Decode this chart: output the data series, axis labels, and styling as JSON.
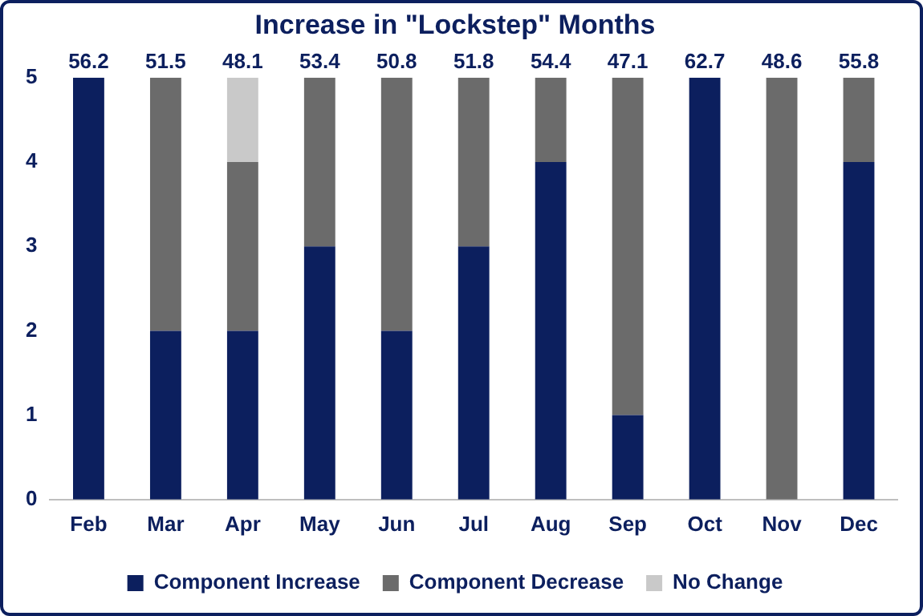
{
  "chart_data": {
    "type": "bar",
    "title": "Increase in \"Lockstep\" Months",
    "categories": [
      "Feb",
      "Mar",
      "Apr",
      "May",
      "Jun",
      "Jul",
      "Aug",
      "Sep",
      "Oct",
      "Nov",
      "Dec"
    ],
    "stacked": true,
    "series": [
      {
        "name": "Component Increase",
        "color": "#0c1f5e",
        "values": [
          5,
          2,
          2,
          3,
          2,
          3,
          4,
          1,
          5,
          0,
          4
        ]
      },
      {
        "name": "Component Decrease",
        "color": "#6b6b6b",
        "values": [
          0,
          3,
          2,
          2,
          3,
          2,
          1,
          4,
          0,
          5,
          1
        ]
      },
      {
        "name": "No Change",
        "color": "#c9c9c9",
        "values": [
          0,
          0,
          1,
          0,
          0,
          0,
          0,
          0,
          0,
          0,
          0
        ]
      }
    ],
    "ylim": [
      0,
      5
    ],
    "yticks": [
      0,
      1,
      2,
      3,
      4,
      5
    ],
    "grid": false,
    "legend": "bottom",
    "annotations": [
      {
        "text": "56.2",
        "x": "Feb",
        "y": 5
      },
      {
        "text": "51.5",
        "x": "Mar",
        "y": 5
      },
      {
        "text": "48.1",
        "x": "Apr",
        "y": 5
      },
      {
        "text": "53.4",
        "x": "May",
        "y": 5
      },
      {
        "text": "50.8",
        "x": "Jun",
        "y": 5
      },
      {
        "text": "51.8",
        "x": "Jul",
        "y": 5
      },
      {
        "text": "54.4",
        "x": "Aug",
        "y": 5
      },
      {
        "text": "47.1",
        "x": "Sep",
        "y": 5
      },
      {
        "text": "62.7",
        "x": "Oct",
        "y": 5
      },
      {
        "text": "48.6",
        "x": "Nov",
        "y": 5
      },
      {
        "text": "55.8",
        "x": "Dec",
        "y": 5
      }
    ]
  }
}
